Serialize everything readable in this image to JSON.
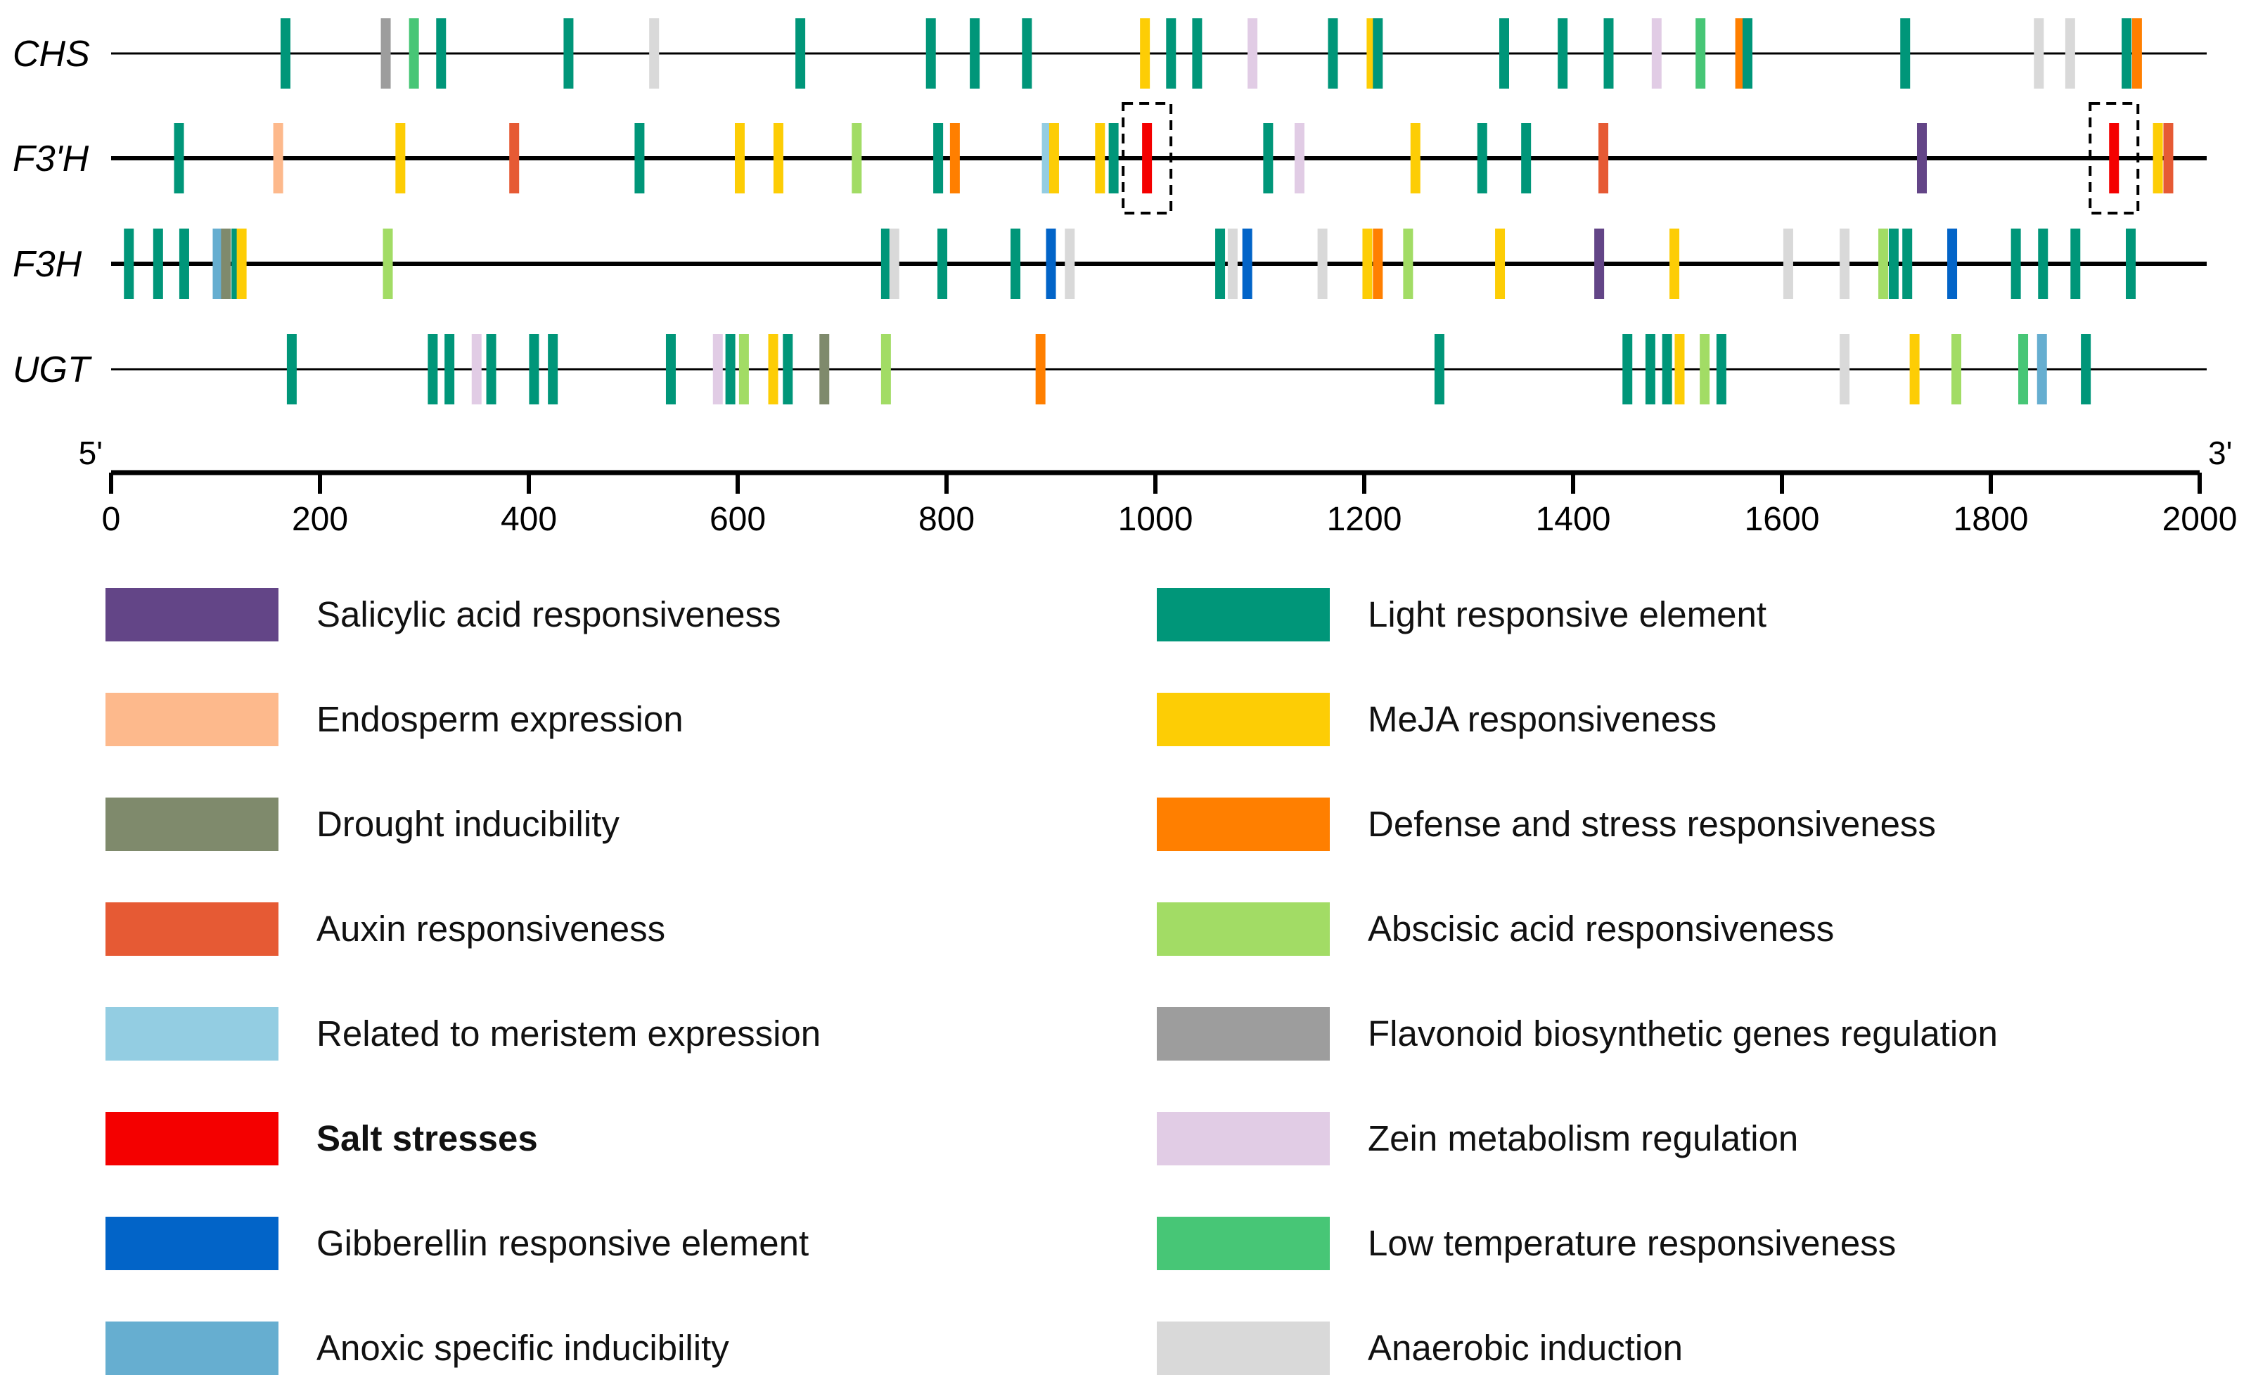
{
  "colors": {
    "salicylic": "#634587",
    "endosperm": "#FDB98C",
    "drought": "#7F8A6C",
    "auxin": "#E65A34",
    "meristem": "#93CDE2",
    "salt": "#F40000",
    "gibberellin": "#0264C8",
    "anoxic": "#66AED0",
    "light": "#009679",
    "meja": "#FDCD05",
    "defense": "#FF7F00",
    "abscisic": "#A2DC65",
    "flavonoid": "#9D9D9D",
    "zein": "#E1CCE5",
    "lowtemp": "#47C676",
    "anaerobic": "#D9D9D9"
  },
  "axis": {
    "min": 0,
    "max": 2000,
    "ticks": [
      "0",
      "200",
      "400",
      "600",
      "800",
      "1000",
      "1200",
      "1400",
      "1600",
      "1800",
      "2000"
    ],
    "start_label": "5'",
    "end_label": "3'"
  },
  "genes": [
    {
      "name": "CHS",
      "bold_line": false,
      "elements": [
        {
          "pos": 167,
          "type": "light"
        },
        {
          "pos": 263,
          "type": "flavonoid"
        },
        {
          "pos": 290,
          "type": "lowtemp"
        },
        {
          "pos": 316,
          "type": "light"
        },
        {
          "pos": 438,
          "type": "light"
        },
        {
          "pos": 520,
          "type": "anaerobic"
        },
        {
          "pos": 660,
          "type": "light"
        },
        {
          "pos": 785,
          "type": "light"
        },
        {
          "pos": 827,
          "type": "light"
        },
        {
          "pos": 877,
          "type": "light"
        },
        {
          "pos": 990,
          "type": "meja"
        },
        {
          "pos": 1015,
          "type": "light"
        },
        {
          "pos": 1040,
          "type": "light"
        },
        {
          "pos": 1093,
          "type": "zein"
        },
        {
          "pos": 1170,
          "type": "light"
        },
        {
          "pos": 1207,
          "type": "meja"
        },
        {
          "pos": 1213,
          "type": "light"
        },
        {
          "pos": 1334,
          "type": "light"
        },
        {
          "pos": 1390,
          "type": "light"
        },
        {
          "pos": 1434,
          "type": "light"
        },
        {
          "pos": 1480,
          "type": "zein"
        },
        {
          "pos": 1522,
          "type": "lowtemp"
        },
        {
          "pos": 1560,
          "type": "defense"
        },
        {
          "pos": 1567,
          "type": "light"
        },
        {
          "pos": 1718,
          "type": "light"
        },
        {
          "pos": 1846,
          "type": "anaerobic"
        },
        {
          "pos": 1876,
          "type": "anaerobic"
        },
        {
          "pos": 1930,
          "type": "light"
        },
        {
          "pos": 1940,
          "type": "defense"
        }
      ]
    },
    {
      "name": "F3'H",
      "bold_line": true,
      "elements": [
        {
          "pos": 65,
          "type": "light"
        },
        {
          "pos": 160,
          "type": "endosperm"
        },
        {
          "pos": 277,
          "type": "meja"
        },
        {
          "pos": 386,
          "type": "auxin"
        },
        {
          "pos": 506,
          "type": "light"
        },
        {
          "pos": 602,
          "type": "meja"
        },
        {
          "pos": 639,
          "type": "meja"
        },
        {
          "pos": 714,
          "type": "abscisic"
        },
        {
          "pos": 792,
          "type": "light"
        },
        {
          "pos": 808,
          "type": "defense"
        },
        {
          "pos": 896,
          "type": "meristem"
        },
        {
          "pos": 903,
          "type": "meja"
        },
        {
          "pos": 947,
          "type": "meja"
        },
        {
          "pos": 960,
          "type": "light"
        },
        {
          "pos": 992,
          "type": "salt"
        },
        {
          "pos": 1108,
          "type": "light"
        },
        {
          "pos": 1138,
          "type": "zein"
        },
        {
          "pos": 1249,
          "type": "meja"
        },
        {
          "pos": 1313,
          "type": "light"
        },
        {
          "pos": 1355,
          "type": "light"
        },
        {
          "pos": 1429,
          "type": "auxin"
        },
        {
          "pos": 1734,
          "type": "salicylic"
        },
        {
          "pos": 1918,
          "type": "salt"
        },
        {
          "pos": 1960,
          "type": "meja"
        },
        {
          "pos": 1970,
          "type": "auxin"
        }
      ]
    },
    {
      "name": "F3H",
      "bold_line": true,
      "elements": [
        {
          "pos": 17,
          "type": "light"
        },
        {
          "pos": 45,
          "type": "light"
        },
        {
          "pos": 70,
          "type": "light"
        },
        {
          "pos": 102,
          "type": "anoxic"
        },
        {
          "pos": 110,
          "type": "drought"
        },
        {
          "pos": 120,
          "type": "light"
        },
        {
          "pos": 125,
          "type": "meja"
        },
        {
          "pos": 265,
          "type": "abscisic"
        },
        {
          "pos": 742,
          "type": "light"
        },
        {
          "pos": 750,
          "type": "anaerobic"
        },
        {
          "pos": 796,
          "type": "light"
        },
        {
          "pos": 866,
          "type": "light"
        },
        {
          "pos": 900,
          "type": "gibberellin"
        },
        {
          "pos": 918,
          "type": "anaerobic"
        },
        {
          "pos": 1062,
          "type": "light"
        },
        {
          "pos": 1074,
          "type": "anaerobic"
        },
        {
          "pos": 1088,
          "type": "gibberellin"
        },
        {
          "pos": 1160,
          "type": "anaerobic"
        },
        {
          "pos": 1203,
          "type": "meja"
        },
        {
          "pos": 1213,
          "type": "defense"
        },
        {
          "pos": 1242,
          "type": "abscisic"
        },
        {
          "pos": 1330,
          "type": "meja"
        },
        {
          "pos": 1425,
          "type": "salicylic"
        },
        {
          "pos": 1497,
          "type": "meja"
        },
        {
          "pos": 1606,
          "type": "anaerobic"
        },
        {
          "pos": 1660,
          "type": "anaerobic"
        },
        {
          "pos": 1697,
          "type": "abscisic"
        },
        {
          "pos": 1707,
          "type": "light"
        },
        {
          "pos": 1720,
          "type": "light"
        },
        {
          "pos": 1763,
          "type": "gibberellin"
        },
        {
          "pos": 1824,
          "type": "light"
        },
        {
          "pos": 1850,
          "type": "light"
        },
        {
          "pos": 1881,
          "type": "light"
        },
        {
          "pos": 1934,
          "type": "light"
        }
      ]
    },
    {
      "name": "UGT",
      "bold_line": false,
      "elements": [
        {
          "pos": 173,
          "type": "light"
        },
        {
          "pos": 308,
          "type": "light"
        },
        {
          "pos": 324,
          "type": "light"
        },
        {
          "pos": 350,
          "type": "zein"
        },
        {
          "pos": 364,
          "type": "light"
        },
        {
          "pos": 405,
          "type": "light"
        },
        {
          "pos": 423,
          "type": "light"
        },
        {
          "pos": 536,
          "type": "light"
        },
        {
          "pos": 581,
          "type": "zein"
        },
        {
          "pos": 593,
          "type": "light"
        },
        {
          "pos": 606,
          "type": "abscisic"
        },
        {
          "pos": 634,
          "type": "meja"
        },
        {
          "pos": 648,
          "type": "light"
        },
        {
          "pos": 683,
          "type": "drought"
        },
        {
          "pos": 742,
          "type": "abscisic"
        },
        {
          "pos": 890,
          "type": "defense"
        },
        {
          "pos": 1272,
          "type": "light"
        },
        {
          "pos": 1452,
          "type": "light"
        },
        {
          "pos": 1474,
          "type": "light"
        },
        {
          "pos": 1490,
          "type": "light"
        },
        {
          "pos": 1502,
          "type": "meja"
        },
        {
          "pos": 1526,
          "type": "abscisic"
        },
        {
          "pos": 1542,
          "type": "light"
        },
        {
          "pos": 1660,
          "type": "anaerobic"
        },
        {
          "pos": 1727,
          "type": "meja"
        },
        {
          "pos": 1767,
          "type": "abscisic"
        },
        {
          "pos": 1831,
          "type": "lowtemp"
        },
        {
          "pos": 1849,
          "type": "anoxic"
        },
        {
          "pos": 1891,
          "type": "light"
        }
      ]
    }
  ],
  "highlight_boxes": [
    {
      "gene": "F3'H",
      "pos": 992
    },
    {
      "gene": "F3'H",
      "pos": 1918
    }
  ],
  "legend": {
    "left": [
      {
        "type": "salicylic",
        "label": "Salicylic acid responsiveness"
      },
      {
        "type": "endosperm",
        "label": "Endosperm expression"
      },
      {
        "type": "drought",
        "label": "Drought inducibility"
      },
      {
        "type": "auxin",
        "label": "Auxin responsiveness"
      },
      {
        "type": "meristem",
        "label": "Related to meristem expression"
      },
      {
        "type": "salt",
        "label": "Salt stresses",
        "highlight": true
      },
      {
        "type": "gibberellin",
        "label": "Gibberellin responsive element"
      },
      {
        "type": "anoxic",
        "label": "Anoxic specific inducibility"
      }
    ],
    "right": [
      {
        "type": "light",
        "label": "Light responsive element"
      },
      {
        "type": "meja",
        "label": "MeJA responsiveness"
      },
      {
        "type": "defense",
        "label": "Defense and stress responsiveness"
      },
      {
        "type": "abscisic",
        "label": "Abscisic acid responsiveness"
      },
      {
        "type": "flavonoid",
        "label": "Flavonoid biosynthetic genes regulation"
      },
      {
        "type": "zein",
        "label": "Zein metabolism regulation"
      },
      {
        "type": "lowtemp",
        "label": "Low temperature responsiveness"
      },
      {
        "type": "anaerobic",
        "label": "Anaerobic induction"
      }
    ]
  }
}
